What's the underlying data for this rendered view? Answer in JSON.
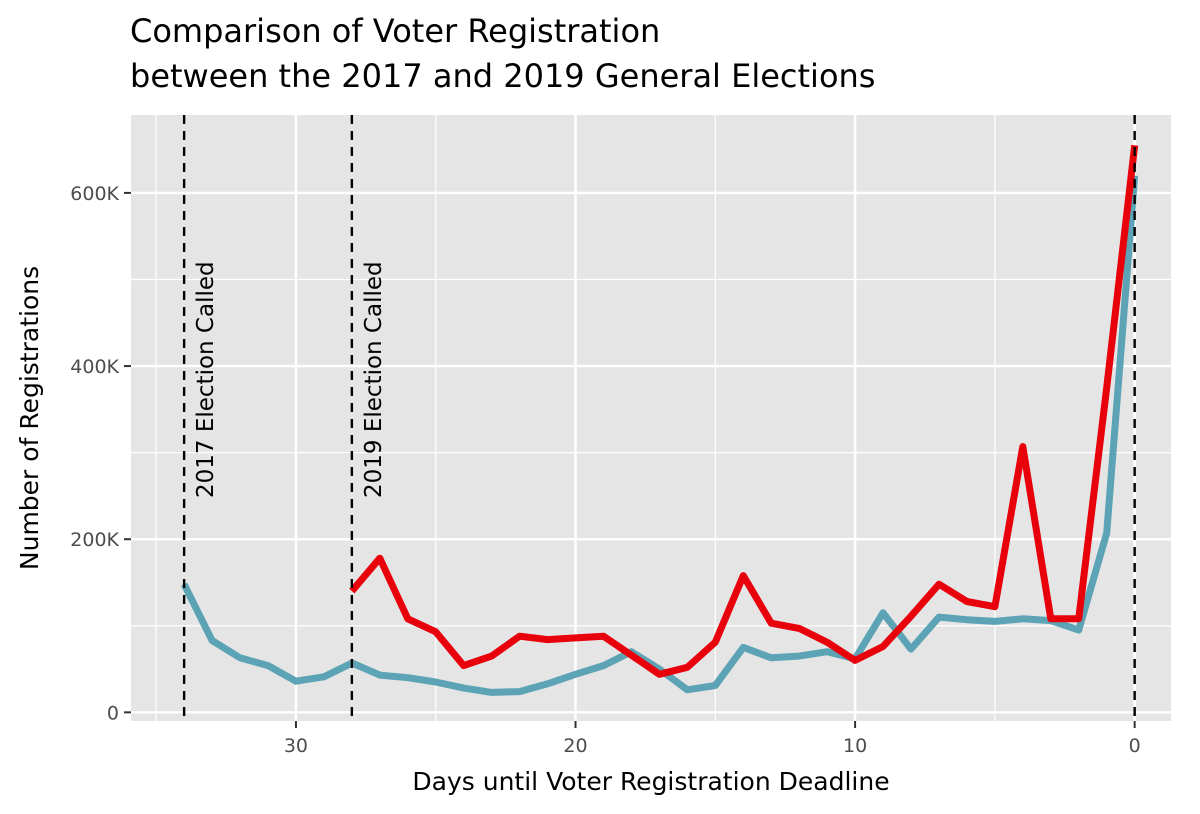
{
  "chart_data": {
    "type": "line",
    "title": "Comparison of Voter Registration",
    "subtitle": "between the 2017 and 2019 General Elections",
    "xlabel": "Days until Voter Registration Deadline",
    "ylabel": "Number of Registrations",
    "x_reversed": true,
    "xlim": [
      35.9,
      -1.3
    ],
    "ylim": [
      -10000,
      690000
    ],
    "x_ticks": [
      {
        "value": 30,
        "label": "30"
      },
      {
        "value": 20,
        "label": "20"
      },
      {
        "value": 10,
        "label": "10"
      },
      {
        "value": 0,
        "label": "0"
      }
    ],
    "x_minor_ticks": [
      35,
      25,
      15,
      5
    ],
    "y_ticks": [
      {
        "value": 0,
        "label": "0"
      },
      {
        "value": 200000,
        "label": "200K"
      },
      {
        "value": 400000,
        "label": "400K"
      },
      {
        "value": 600000,
        "label": "600K"
      }
    ],
    "y_minor_ticks": [
      100000,
      300000,
      500000
    ],
    "grid": true,
    "background": "#e5e5e5",
    "grid_color": "#ffffff",
    "series": [
      {
        "name": "2017",
        "color": "#5ba3b5",
        "x": [
          34,
          33,
          32,
          31,
          30,
          29,
          28,
          27,
          26,
          25,
          24,
          23,
          22,
          21,
          20,
          19,
          18,
          17,
          16,
          15,
          14,
          13,
          12,
          11,
          10,
          9,
          8,
          7,
          6,
          5,
          4,
          3,
          2,
          1,
          0
        ],
        "values": [
          148000,
          83000,
          63000,
          54000,
          36000,
          41000,
          57000,
          43000,
          40000,
          35000,
          28000,
          23000,
          24000,
          33000,
          44000,
          54000,
          70000,
          50000,
          26000,
          31000,
          75000,
          63000,
          65000,
          70000,
          62000,
          115000,
          73000,
          110000,
          107000,
          105000,
          108000,
          106000,
          95000,
          207000,
          620000
        ]
      },
      {
        "name": "2019",
        "color": "#e8000b",
        "x": [
          28,
          27,
          26,
          25,
          24,
          23,
          22,
          21,
          20,
          19,
          18,
          17,
          16,
          15,
          14,
          13,
          12,
          11,
          10,
          9,
          8,
          7,
          6,
          5,
          4,
          3,
          2,
          1,
          0
        ],
        "values": [
          140000,
          178000,
          108000,
          93000,
          54000,
          65000,
          88000,
          84000,
          86000,
          88000,
          66000,
          44000,
          52000,
          81000,
          158000,
          103000,
          97000,
          81000,
          60000,
          76000,
          111000,
          148000,
          128000,
          122000,
          307000,
          108000,
          108000,
          375000,
          655000
        ]
      }
    ],
    "vlines": [
      {
        "x": 34,
        "label": "2017 Election Called"
      },
      {
        "x": 28,
        "label": "2019 Election Called"
      },
      {
        "x": 0,
        "label": ""
      }
    ]
  }
}
